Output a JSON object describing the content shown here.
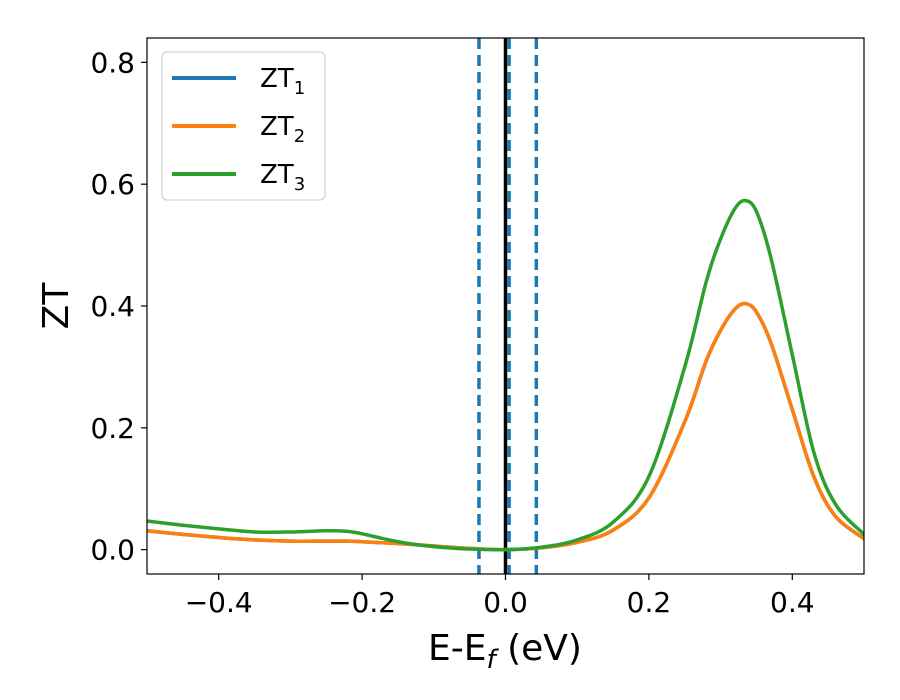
{
  "chart_data": {
    "type": "line",
    "xlabel_main": "E-E",
    "xlabel_sub": "f",
    "xlabel_unit": " (eV)",
    "ylabel": "ZT",
    "xlim": [
      -0.5,
      0.5
    ],
    "ylim": [
      -0.04,
      0.84
    ],
    "xticks": [
      -0.4,
      -0.2,
      0.0,
      0.2,
      0.4
    ],
    "xtick_labels": [
      "−0.4",
      "−0.2",
      "0.0",
      "0.2",
      "0.4"
    ],
    "yticks": [
      0.0,
      0.2,
      0.4,
      0.6,
      0.8
    ],
    "ytick_labels": [
      "0.0",
      "0.2",
      "0.4",
      "0.6",
      "0.8"
    ],
    "grid": false,
    "legend_position": "top-left",
    "vertical_lines": [
      {
        "x": -0.037,
        "style": "dashed",
        "color": "#1f77b4"
      },
      {
        "x": 0.0,
        "style": "solid",
        "color": "#000000"
      },
      {
        "x": 0.005,
        "style": "dashed",
        "color": "#1f77b4"
      },
      {
        "x": 0.043,
        "style": "dashed",
        "color": "#1f77b4"
      }
    ],
    "x": [
      -0.5,
      -0.45,
      -0.4,
      -0.35,
      -0.3,
      -0.25,
      -0.22,
      -0.2,
      -0.15,
      -0.1,
      -0.05,
      0.0,
      0.05,
      0.1,
      0.15,
      0.2,
      0.25,
      0.28,
      0.3,
      0.32,
      0.335,
      0.35,
      0.37,
      0.4,
      0.43,
      0.46,
      0.5
    ],
    "series": [
      {
        "name_main": "ZT",
        "name_sub": "1",
        "color": "#1f77b4",
        "values": [
          0.031,
          0.025,
          0.02,
          0.016,
          0.014,
          0.014,
          0.014,
          0.013,
          0.01,
          0.006,
          0.002,
          0.0,
          0.003,
          0.012,
          0.032,
          0.085,
          0.21,
          0.31,
          0.36,
          0.395,
          0.404,
          0.39,
          0.34,
          0.23,
          0.12,
          0.055,
          0.018
        ]
      },
      {
        "name_main": "ZT",
        "name_sub": "2",
        "color": "#ff7f0e",
        "values": [
          0.031,
          0.025,
          0.02,
          0.016,
          0.014,
          0.014,
          0.014,
          0.013,
          0.01,
          0.006,
          0.002,
          0.0,
          0.003,
          0.012,
          0.032,
          0.085,
          0.21,
          0.31,
          0.36,
          0.395,
          0.404,
          0.39,
          0.34,
          0.23,
          0.12,
          0.055,
          0.018
        ]
      },
      {
        "name_main": "ZT",
        "name_sub": "3",
        "color": "#2ca02c",
        "values": [
          0.047,
          0.04,
          0.034,
          0.029,
          0.029,
          0.031,
          0.03,
          0.026,
          0.013,
          0.005,
          0.001,
          0.0,
          0.004,
          0.016,
          0.045,
          0.12,
          0.3,
          0.44,
          0.51,
          0.56,
          0.573,
          0.555,
          0.48,
          0.32,
          0.16,
          0.075,
          0.025
        ]
      }
    ]
  }
}
